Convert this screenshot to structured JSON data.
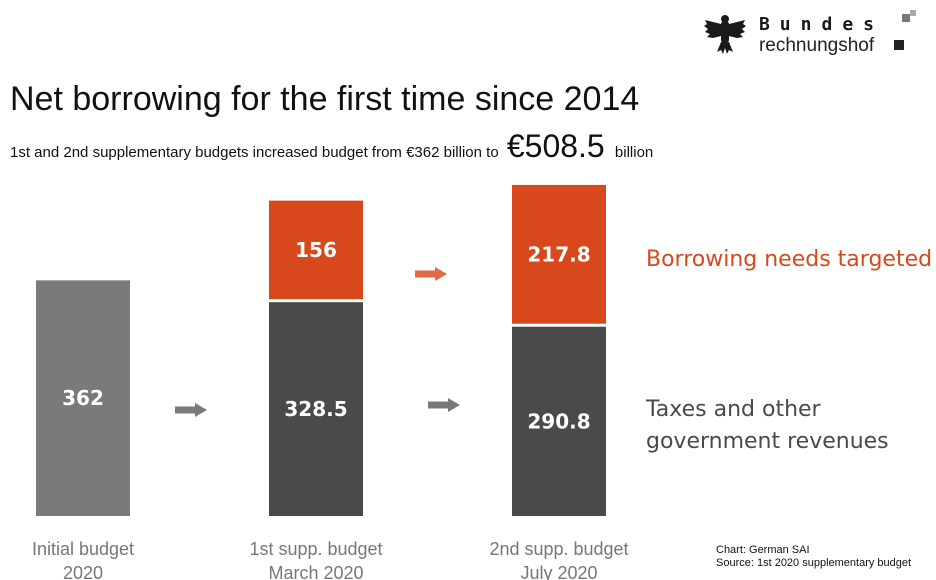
{
  "header": {
    "logo_line1": "Bundes",
    "logo_line2": "rechnungshof"
  },
  "title": "Net borrowing for the first time since 2014",
  "subtitle": {
    "prefix": "1st and 2nd supplementary budgets increased budget from €362 billion to",
    "highlight": "€508.5",
    "suffix": "billion"
  },
  "chart_data": {
    "type": "bar",
    "stacked": true,
    "categories": [
      "Initial budget\n2020",
      "1st supp. budget\nMarch 2020",
      "2nd supp. budget\nJuly 2020"
    ],
    "series": [
      {
        "name": "Taxes and other\ngovernment revenues",
        "values": [
          362,
          328.5,
          290.8
        ],
        "color": "#4a4a4a"
      },
      {
        "name": "Borrowing needs targeted",
        "values": [
          0,
          156,
          217.8
        ],
        "color": "#d8481c"
      }
    ],
    "initial_bar_color": "#7a7a7a",
    "series_label_colors": [
      "#4a4a4a",
      "#d8481c"
    ],
    "arrow_color": "#7a7a7a",
    "arrow_color_accent": "#e06a45",
    "ylim": [
      0,
      508.5
    ],
    "grid": false,
    "legend": "right"
  },
  "footnote": {
    "line1": "Chart: German SAI",
    "line2": "Source: 1st 2020 supplementary budget"
  }
}
